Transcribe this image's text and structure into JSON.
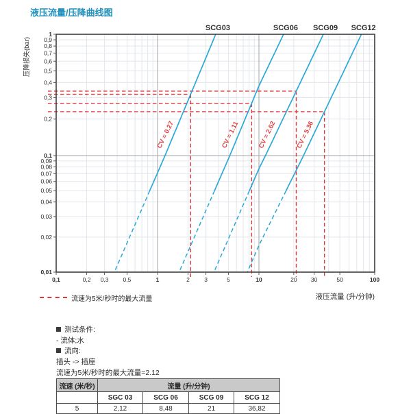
{
  "page": {
    "title": "液压流量/压降曲线图"
  },
  "chart_data": {
    "type": "line",
    "title": "液压流量/压降曲线图",
    "x_scale": "log",
    "y_scale": "log",
    "xlim": [
      0.1,
      100
    ],
    "ylim": [
      0.01,
      1
    ],
    "xlabel": "液压流量 (升/分钟)",
    "ylabel": "压降损失(bar)",
    "grid": true,
    "x_ticks": [
      {
        "v": 0.1,
        "label": "0,1",
        "major": true
      },
      {
        "v": 0.2,
        "label": "0,2"
      },
      {
        "v": 0.3,
        "label": "0,3"
      },
      {
        "v": 0.5,
        "label": "0,5"
      },
      {
        "v": 1,
        "label": "1",
        "major": true
      },
      {
        "v": 2,
        "label": "2"
      },
      {
        "v": 3,
        "label": "3"
      },
      {
        "v": 5,
        "label": "5"
      },
      {
        "v": 10,
        "label": "10",
        "major": true
      },
      {
        "v": 20,
        "label": "20"
      },
      {
        "v": 30,
        "label": "30"
      },
      {
        "v": 50,
        "label": "50"
      },
      {
        "v": 100,
        "label": "100",
        "major": true
      }
    ],
    "y_ticks": [
      {
        "v": 1,
        "label": "1",
        "major": true
      },
      {
        "v": 0.9,
        "label": "0,9"
      },
      {
        "v": 0.8,
        "label": "0,8"
      },
      {
        "v": 0.7,
        "label": "0,7"
      },
      {
        "v": 0.6,
        "label": "0,6"
      },
      {
        "v": 0.5,
        "label": "0,5"
      },
      {
        "v": 0.4,
        "label": "0,4"
      },
      {
        "v": 0.3,
        "label": "0,3"
      },
      {
        "v": 0.2,
        "label": "0,2"
      },
      {
        "v": 0.1,
        "label": "0,1",
        "major": true
      },
      {
        "v": 0.09,
        "label": "0,09"
      },
      {
        "v": 0.08,
        "label": "0,08"
      },
      {
        "v": 0.07,
        "label": "0,07"
      },
      {
        "v": 0.06,
        "label": "0,06"
      },
      {
        "v": 0.05,
        "label": "0,05"
      },
      {
        "v": 0.04,
        "label": "0,04"
      },
      {
        "v": 0.03,
        "label": "0,03"
      },
      {
        "v": 0.02,
        "label": "0,02"
      },
      {
        "v": 0.01,
        "label": "0,01",
        "major": true
      }
    ],
    "series": [
      {
        "name": "SCG03",
        "cv": 0.27,
        "cv_label": "CV = 0.27",
        "max_flow_lpm": 2.12,
        "dp_at_max_bar": 0.32
      },
      {
        "name": "SCG06",
        "cv": 1.11,
        "cv_label": "CV = 1.11",
        "max_flow_lpm": 8.48,
        "dp_at_max_bar": 0.27
      },
      {
        "name": "SCG09",
        "cv": 2.62,
        "cv_label": "CV = 2.62",
        "max_flow_lpm": 21,
        "dp_at_max_bar": 0.34
      },
      {
        "name": "SCG12",
        "cv": 5.36,
        "cv_label": "CV = 5.36",
        "max_flow_lpm": 36.82,
        "dp_at_max_bar": 0.23
      }
    ],
    "dashed_below_dp": 0.05,
    "legend": {
      "label": "流速为5米/秒时的最大流量",
      "position": "bottom-left"
    },
    "colors": {
      "curve": "#2ca8d7",
      "guide": "#dd3b3b",
      "title": "#1f8fbb"
    }
  },
  "notes": {
    "lines": [
      {
        "bullet": true,
        "text": "测试条件:"
      },
      {
        "bullet": false,
        "text": "- 流体;水"
      },
      {
        "bullet": true,
        "text": "流向:"
      },
      {
        "bullet": false,
        "text": "插头 -> 插座"
      },
      {
        "bullet": false,
        "text": "流速为5米/秒时的最大流量=2.12"
      }
    ]
  },
  "table": {
    "col1_header": "流速 (米/秒)",
    "group_header": "流量 (升/分钟)",
    "columns": [
      "SGC 03",
      "SCG 06",
      "SCG 09",
      "SCG 12"
    ],
    "rows": [
      {
        "speed": "5",
        "values": [
          "2,12",
          "8,48",
          "21",
          "36,82"
        ]
      }
    ]
  }
}
